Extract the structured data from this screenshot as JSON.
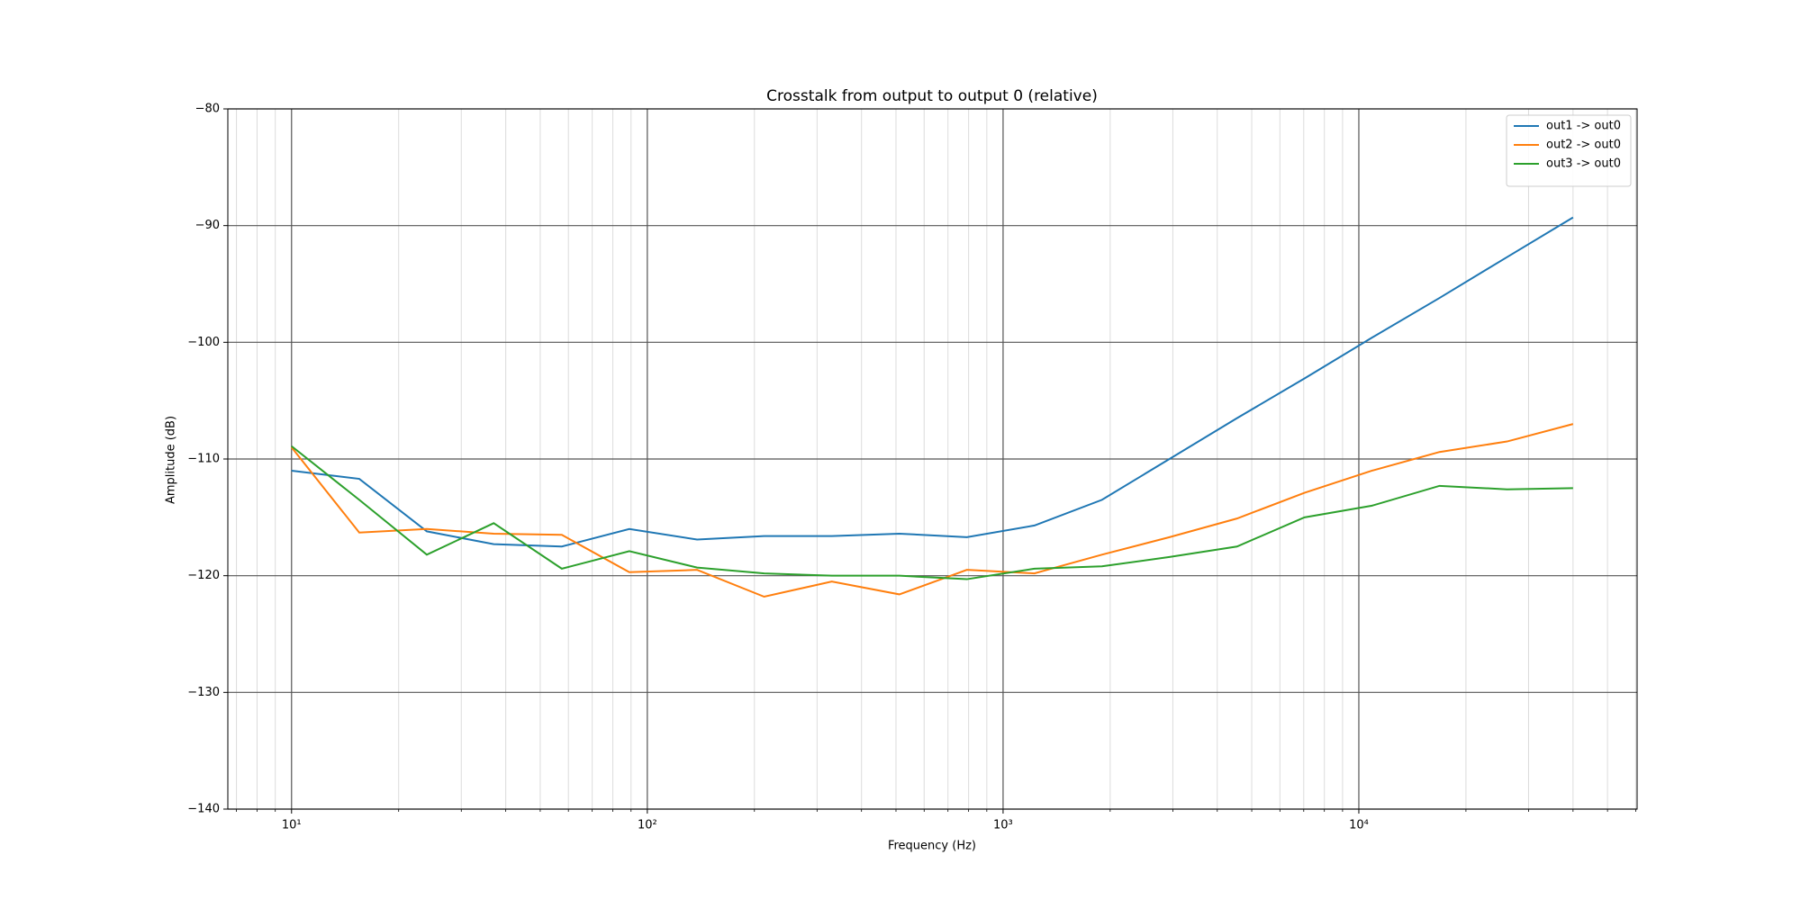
{
  "chart_data": {
    "type": "line",
    "title": "Crosstalk from output to output 0 (relative)",
    "xlabel": "Frequency (Hz)",
    "ylabel": "Amplitude (dB)",
    "xscale": "log",
    "grid": true,
    "legend": "upper right",
    "x": [
      10,
      15.5,
      24,
      37,
      57.5,
      89,
      138,
      213,
      330,
      511,
      791,
      1225,
      1896,
      2935,
      4544,
      7034,
      10889,
      16857,
      26096,
      40000
    ],
    "series": [
      {
        "name": "out1 -> out0",
        "color": "#1f77b4",
        "values": [
          -111,
          -111.7,
          -116.2,
          -117.3,
          -117.5,
          -116,
          -116.9,
          -116.6,
          -116.6,
          -116.4,
          -116.7,
          -115.7,
          -113.5,
          -110.0,
          -106.5,
          -103.1,
          -99.6,
          -96.2,
          -92.7,
          -89.3
        ]
      },
      {
        "name": "out2 -> out0",
        "color": "#ff7f0e",
        "values": [
          -109,
          -116.3,
          -116,
          -116.4,
          -116.5,
          -119.7,
          -119.5,
          -121.8,
          -120.5,
          -121.6,
          -119.5,
          -119.8,
          -118.2,
          -116.7,
          -115.1,
          -112.9,
          -111,
          -109.4,
          -108.5,
          -107
        ]
      },
      {
        "name": "out3 -> out0",
        "color": "#2ca02c",
        "values": [
          -108.9,
          -113.5,
          -118.2,
          -115.5,
          -119.4,
          -117.9,
          -119.3,
          -119.8,
          -120,
          -120,
          -120.3,
          -119.4,
          -119.2,
          -118.4,
          -117.5,
          -115,
          -114,
          -112.3,
          -112.6,
          -112.5
        ]
      }
    ],
    "xlim": [
      6.62,
      60560
    ],
    "xticks": [
      {
        "value": 10,
        "label": "10¹"
      },
      {
        "value": 100,
        "label": "10²"
      },
      {
        "value": 1000,
        "label": "10³"
      },
      {
        "value": 10000,
        "label": "10⁴"
      }
    ],
    "xminorticks": [
      7,
      8,
      9,
      20,
      30,
      40,
      50,
      60,
      70,
      80,
      90,
      200,
      300,
      400,
      500,
      600,
      700,
      800,
      900,
      2000,
      3000,
      4000,
      5000,
      6000,
      7000,
      8000,
      9000,
      20000,
      30000,
      40000,
      50000,
      60000
    ],
    "ylim": [
      -140,
      -80
    ],
    "yticks": [
      {
        "value": -140,
        "label": "−140"
      },
      {
        "value": -130,
        "label": "−130"
      },
      {
        "value": -120,
        "label": "−120"
      },
      {
        "value": -110,
        "label": "−110"
      },
      {
        "value": -100,
        "label": "−100"
      },
      {
        "value": -90,
        "label": "−90"
      },
      {
        "value": -80,
        "label": "−80"
      }
    ]
  }
}
